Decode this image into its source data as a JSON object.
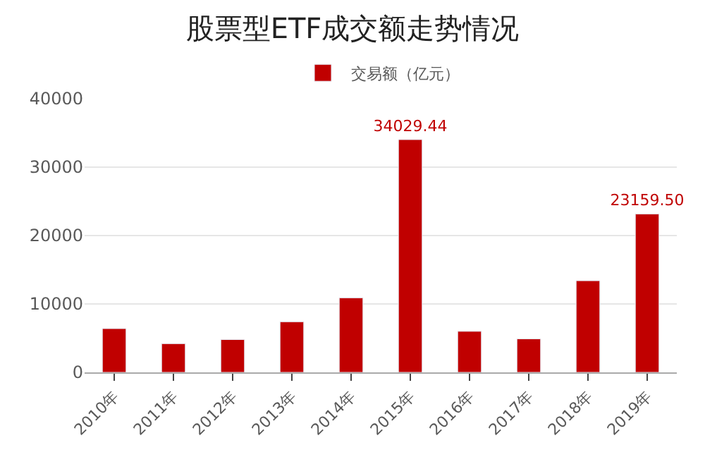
{
  "chart_data": {
    "type": "bar",
    "title": "股票型ETF成交额走势情况",
    "categories": [
      "2010年",
      "2011年",
      "2012年",
      "2013年",
      "2014年",
      "2015年",
      "2016年",
      "2017年",
      "2018年",
      "2019年"
    ],
    "series": [
      {
        "name": "交易额（亿元）",
        "color": "#c00000",
        "values": [
          6400,
          4200,
          4800,
          7400,
          10900,
          34029.44,
          6000,
          4900,
          13400,
          23159.5
        ],
        "value_labels": [
          null,
          null,
          null,
          null,
          null,
          "34029.44",
          null,
          null,
          null,
          "23159.50"
        ]
      }
    ],
    "ylim": [
      0,
      40000
    ],
    "yticks": [
      0,
      10000,
      20000,
      30000,
      40000
    ],
    "grid": "y",
    "legend": "top"
  }
}
